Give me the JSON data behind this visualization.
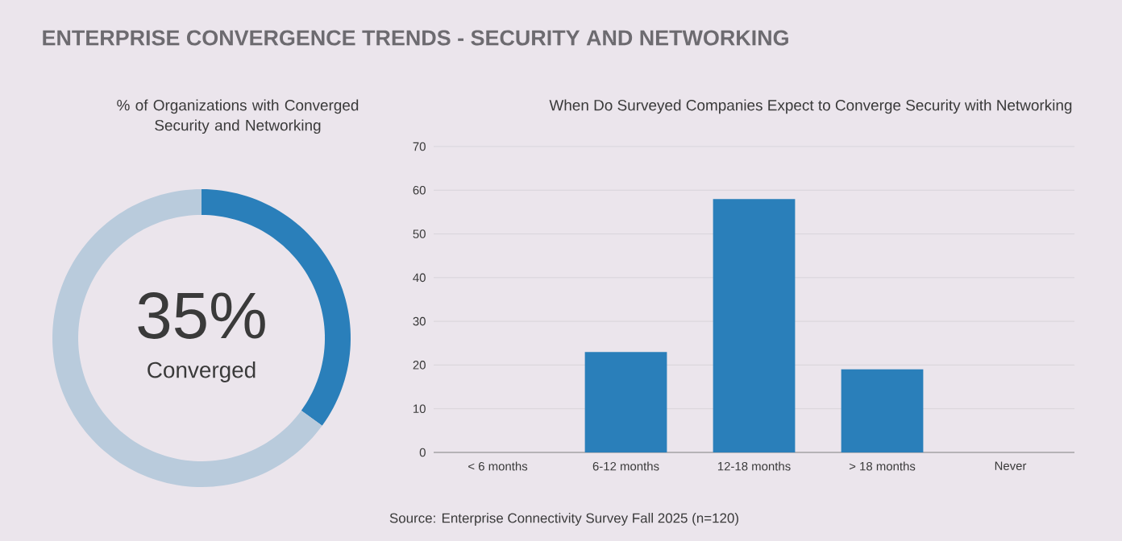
{
  "chart_data": [
    {
      "type": "donut",
      "title": "ENTERPRISE CONVERGENCE TRENDS - SECURITY AND NETWORKING",
      "subtitle": "% of Organizations with Converged Security and Networking",
      "categories": [
        null,
        null
      ],
      "values": [
        35,
        65
      ],
      "colors": [
        "#2a7fba",
        "#b9cbdc"
      ],
      "value_labels": [
        "35%",
        null
      ],
      "annotations": [
        "Converged"
      ]
    },
    {
      "type": "bar",
      "title": "When Do Surveyed Companies Expect to Converge Security with Networking",
      "categories": [
        "< 6 months",
        "6-12 months",
        "12-18 months",
        "> 18 months",
        "Never"
      ],
      "values": [
        0,
        23,
        58,
        19,
        0
      ],
      "color": "#2a7fba",
      "ylim": [
        0,
        70
      ],
      "yticks": [
        0,
        10,
        20,
        30,
        40,
        50,
        60,
        70
      ],
      "grid": "y",
      "annotations": [
        "Source: Enterprise Connectivity Survey Fall 2025 (n=120)"
      ]
    }
  ]
}
